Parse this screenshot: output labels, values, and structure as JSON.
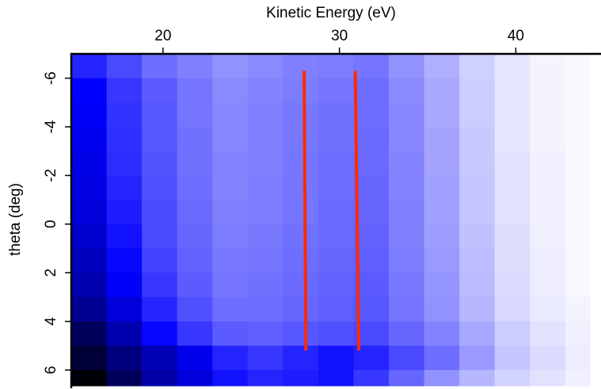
{
  "chart_data": {
    "type": "heatmap",
    "xlabel": "Kinetic Energy (eV)",
    "ylabel": "theta (deg)",
    "xlim": [
      14.8,
      44.2
    ],
    "xticks": [
      20,
      30,
      40
    ],
    "ylim": [
      -7.0,
      6.65
    ],
    "yticks": [
      -6,
      -4,
      -2,
      0,
      2,
      4,
      6
    ],
    "y_inverted": true,
    "x": [
      15.8,
      17.8,
      19.8,
      21.8,
      23.8,
      25.8,
      27.8,
      29.8,
      31.8,
      33.8,
      35.8,
      37.8,
      39.8,
      41.8,
      43.8
    ],
    "y": [
      -6.5,
      -5.5,
      -4.5,
      -3.5,
      -2.5,
      -1.5,
      -0.5,
      0.5,
      1.5,
      2.5,
      3.5,
      4.5,
      5.5,
      6.5
    ],
    "z": [
      [
        0.6,
        0.5,
        0.4,
        0.35,
        0.3,
        0.32,
        0.35,
        0.36,
        0.38,
        0.3,
        0.22,
        0.13,
        0.07,
        0.03,
        0.02
      ],
      [
        0.7,
        0.55,
        0.45,
        0.38,
        0.32,
        0.34,
        0.36,
        0.38,
        0.4,
        0.32,
        0.24,
        0.14,
        0.07,
        0.03,
        0.02
      ],
      [
        0.72,
        0.56,
        0.46,
        0.38,
        0.33,
        0.35,
        0.37,
        0.39,
        0.4,
        0.33,
        0.24,
        0.14,
        0.07,
        0.03,
        0.02
      ],
      [
        0.74,
        0.57,
        0.46,
        0.39,
        0.33,
        0.35,
        0.37,
        0.39,
        0.41,
        0.33,
        0.25,
        0.15,
        0.07,
        0.03,
        0.02
      ],
      [
        0.76,
        0.58,
        0.47,
        0.39,
        0.34,
        0.35,
        0.38,
        0.4,
        0.41,
        0.34,
        0.25,
        0.15,
        0.08,
        0.04,
        0.02
      ],
      [
        0.78,
        0.6,
        0.48,
        0.4,
        0.34,
        0.36,
        0.38,
        0.4,
        0.42,
        0.34,
        0.26,
        0.16,
        0.08,
        0.04,
        0.02
      ],
      [
        0.8,
        0.62,
        0.49,
        0.41,
        0.35,
        0.36,
        0.38,
        0.41,
        0.42,
        0.35,
        0.26,
        0.16,
        0.08,
        0.04,
        0.02
      ],
      [
        0.84,
        0.65,
        0.5,
        0.42,
        0.36,
        0.37,
        0.39,
        0.41,
        0.43,
        0.35,
        0.27,
        0.17,
        0.09,
        0.04,
        0.02
      ],
      [
        0.88,
        0.68,
        0.52,
        0.43,
        0.37,
        0.38,
        0.4,
        0.42,
        0.44,
        0.36,
        0.28,
        0.18,
        0.09,
        0.05,
        0.02
      ],
      [
        0.92,
        0.72,
        0.55,
        0.45,
        0.38,
        0.39,
        0.41,
        0.43,
        0.45,
        0.37,
        0.29,
        0.19,
        0.1,
        0.05,
        0.02
      ],
      [
        1.0,
        0.8,
        0.6,
        0.48,
        0.4,
        0.4,
        0.42,
        0.44,
        0.46,
        0.38,
        0.3,
        0.2,
        0.11,
        0.06,
        0.03
      ],
      [
        1.15,
        0.92,
        0.68,
        0.55,
        0.45,
        0.44,
        0.46,
        0.48,
        0.5,
        0.42,
        0.34,
        0.24,
        0.14,
        0.08,
        0.04
      ],
      [
        1.25,
        1.05,
        0.9,
        0.75,
        0.6,
        0.55,
        0.6,
        0.65,
        0.6,
        0.5,
        0.4,
        0.28,
        0.16,
        0.1,
        0.05
      ],
      [
        1.38,
        1.15,
        0.95,
        0.8,
        0.65,
        0.6,
        0.62,
        0.65,
        0.55,
        0.42,
        0.3,
        0.2,
        0.12,
        0.08,
        0.04
      ]
    ],
    "zlim": [
      0,
      1.4
    ],
    "colorscale": [
      "#ffffff",
      "#0000ff",
      "#000000"
    ],
    "lines": [
      {
        "x": [
          28.0,
          28.1
        ],
        "y": [
          -6.3,
          5.2
        ],
        "color": "#ff2a00"
      },
      {
        "x": [
          30.9,
          31.1
        ],
        "y": [
          -6.3,
          5.2
        ],
        "color": "#ff2a00"
      }
    ]
  }
}
